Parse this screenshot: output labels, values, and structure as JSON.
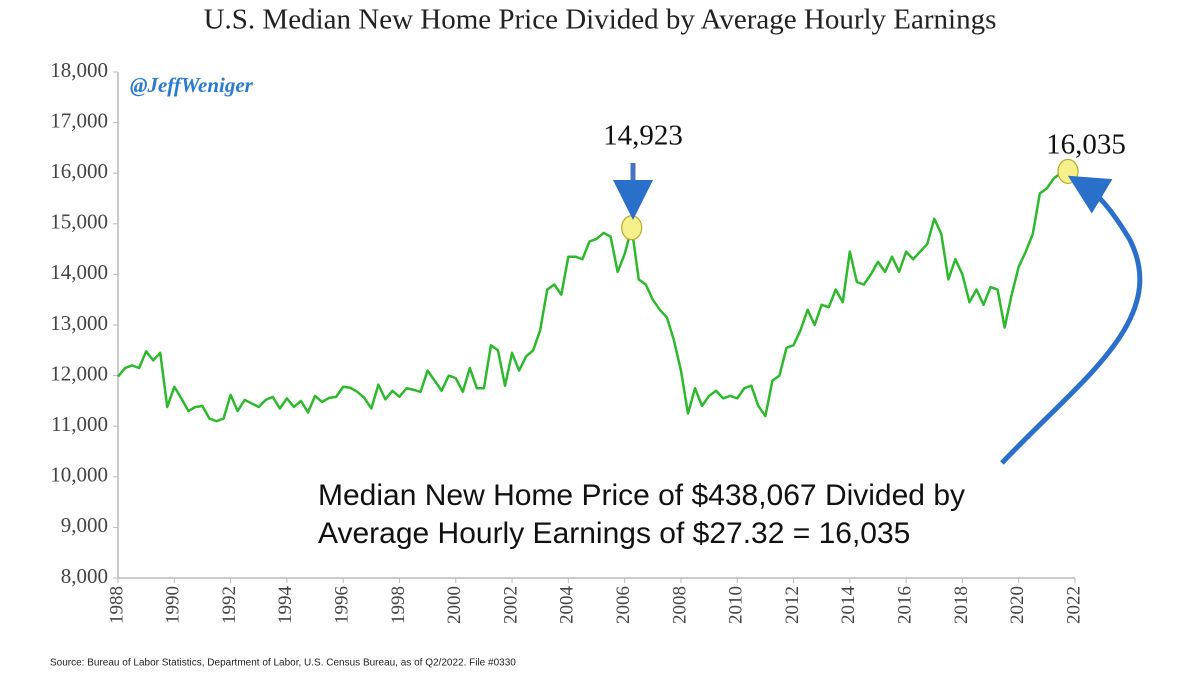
{
  "chart_data": {
    "type": "line",
    "title": "U.S. Median New Home Price Divided by Average Hourly Earnings",
    "watermark": "@JeffWeniger",
    "source": "Source: Bureau of Labor Statistics, Department of Labor, U.S. Census Bureau, as of Q2/2022. File #0330",
    "annotations": {
      "peak_2006": "14,923",
      "latest": "16,035",
      "note": [
        "Median New Home Price of $438,067 Divided by",
        "Average Hourly Earnings of $27.32 = 16,035"
      ]
    },
    "xlim": [
      1988,
      2022
    ],
    "xticks": [
      1988,
      1990,
      1992,
      1994,
      1996,
      1998,
      2000,
      2002,
      2004,
      2006,
      2008,
      2010,
      2012,
      2014,
      2016,
      2018,
      2020,
      2022
    ],
    "ylim": [
      8000,
      18000
    ],
    "yticks": [
      {
        "value": 8000,
        "label": "8,000"
      },
      {
        "value": 9000,
        "label": "9,000"
      },
      {
        "value": 10000,
        "label": "10,000"
      },
      {
        "value": 11000,
        "label": "11,000"
      },
      {
        "value": 12000,
        "label": "12,000"
      },
      {
        "value": 13000,
        "label": "13,000"
      },
      {
        "value": 14000,
        "label": "14,000"
      },
      {
        "value": 15000,
        "label": "15,000"
      },
      {
        "value": 16000,
        "label": "16,000"
      },
      {
        "value": 17000,
        "label": "17,000"
      },
      {
        "value": 18000,
        "label": "18,000"
      }
    ],
    "x": [
      1988,
      1988.25,
      1988.5,
      1988.75,
      1989,
      1989.25,
      1989.5,
      1989.75,
      1990,
      1990.25,
      1990.5,
      1990.75,
      1991,
      1991.25,
      1991.5,
      1991.75,
      1992,
      1992.25,
      1992.5,
      1992.75,
      1993,
      1993.25,
      1993.5,
      1993.75,
      1994,
      1994.25,
      1994.5,
      1994.75,
      1995,
      1995.25,
      1995.5,
      1995.75,
      1996,
      1996.25,
      1996.5,
      1996.75,
      1997,
      1997.25,
      1997.5,
      1997.75,
      1998,
      1998.25,
      1998.5,
      1998.75,
      1999,
      1999.25,
      1999.5,
      1999.75,
      2000,
      2000.25,
      2000.5,
      2000.75,
      2001,
      2001.25,
      2001.5,
      2001.75,
      2002,
      2002.25,
      2002.5,
      2002.75,
      2003,
      2003.25,
      2003.5,
      2003.75,
      2004,
      2004.25,
      2004.5,
      2004.75,
      2005,
      2005.25,
      2005.5,
      2005.75,
      2006,
      2006.25,
      2006.5,
      2006.75,
      2007,
      2007.25,
      2007.5,
      2007.75,
      2008,
      2008.25,
      2008.5,
      2008.75,
      2009,
      2009.25,
      2009.5,
      2009.75,
      2010,
      2010.25,
      2010.5,
      2010.75,
      2011,
      2011.25,
      2011.5,
      2011.75,
      2012,
      2012.25,
      2012.5,
      2012.75,
      2013,
      2013.25,
      2013.5,
      2013.75,
      2014,
      2014.25,
      2014.5,
      2014.75,
      2015,
      2015.25,
      2015.5,
      2015.75,
      2016,
      2016.25,
      2016.5,
      2016.75,
      2017,
      2017.25,
      2017.5,
      2017.75,
      2018,
      2018.25,
      2018.5,
      2018.75,
      2019,
      2019.25,
      2019.5,
      2019.75,
      2020,
      2020.25,
      2020.5,
      2020.75,
      2021,
      2021.25,
      2021.5,
      2021.75
    ],
    "series": [
      {
        "name": "Median New Home Price / Average Hourly Earnings",
        "color": "#2eb82e",
        "values": [
          11980,
          12150,
          12200,
          12150,
          12480,
          12300,
          12450,
          11380,
          11780,
          11550,
          11300,
          11380,
          11400,
          11150,
          11100,
          11150,
          11620,
          11300,
          11520,
          11450,
          11380,
          11520,
          11580,
          11350,
          11550,
          11380,
          11500,
          11270,
          11600,
          11480,
          11560,
          11580,
          11780,
          11760,
          11680,
          11560,
          11350,
          11820,
          11530,
          11700,
          11580,
          11750,
          11720,
          11680,
          12100,
          11900,
          11700,
          12000,
          11950,
          11680,
          12150,
          11750,
          11750,
          12600,
          12500,
          11800,
          12450,
          12100,
          12380,
          12500,
          12900,
          13700,
          13800,
          13600,
          14350,
          14350,
          14300,
          14650,
          14700,
          14820,
          14750,
          14050,
          14400,
          14923,
          13900,
          13800,
          13500,
          13300,
          13150,
          12700,
          12100,
          11250,
          11750,
          11400,
          11600,
          11700,
          11550,
          11600,
          11550,
          11750,
          11800,
          11400,
          11200,
          11900,
          12000,
          12550,
          12600,
          12900,
          13300,
          13000,
          13400,
          13350,
          13700,
          13450,
          14450,
          13850,
          13800,
          14000,
          14250,
          14050,
          14350,
          14050,
          14450,
          14300,
          14450,
          14600,
          15100,
          14800,
          13900,
          14300,
          14000,
          13450,
          13700,
          13400,
          13750,
          13700,
          12950,
          13600,
          14150,
          14450,
          14800,
          15600,
          15700,
          15900,
          16000,
          16035
        ]
      }
    ]
  }
}
